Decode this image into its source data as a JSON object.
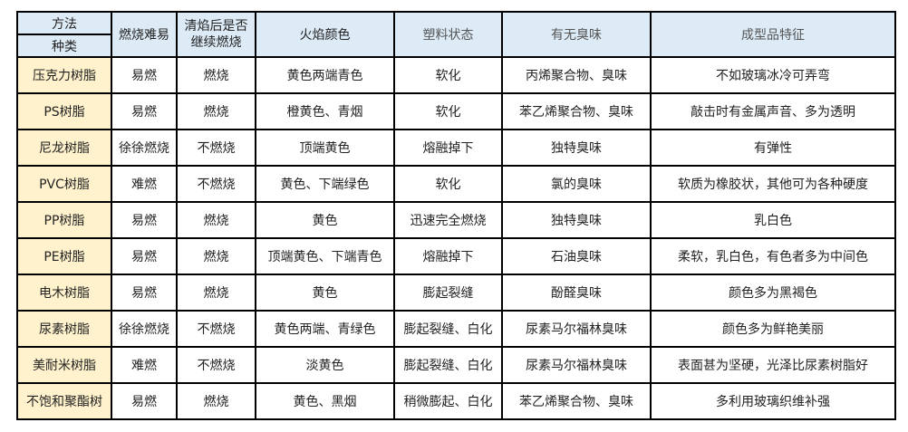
{
  "header": {
    "method": "方法",
    "kind": "种类",
    "columns": [
      "燃烧难易",
      "清焰后是否继续燃烧",
      "火焰颜色",
      "塑料状态",
      "有无臭味",
      "成型品特征"
    ]
  },
  "rows": [
    [
      "压克力树脂",
      "易燃",
      "燃烧",
      "黄色两端青色",
      "软化",
      "丙烯聚合物、臭味",
      "不如玻璃冰冷可弄弯"
    ],
    [
      "PS树脂",
      "易燃",
      "燃烧",
      "橙黄色、青烟",
      "软化",
      "苯乙烯聚合物、臭味",
      "敲击时有金属声音、多为透明"
    ],
    [
      "尼龙树脂",
      "徐徐燃烧",
      "不燃烧",
      "顶端黄色",
      "熔融掉下",
      "独特臭味",
      "有弹性"
    ],
    [
      "PVC树脂",
      "难燃",
      "不燃烧",
      "黄色、下端绿色",
      "软化",
      "氯的臭味",
      "软质为橡胶状，其他可为各种硬度"
    ],
    [
      "PP树脂",
      "易燃",
      "燃烧",
      "黄色",
      "迅速完全燃烧",
      "独特臭味",
      "乳白色"
    ],
    [
      "PE树脂",
      "易燃",
      "燃烧",
      "顶端黄色、下端青色",
      "熔融掉下",
      "石油臭味",
      "柔软，乳白色，有色者多为中间色"
    ],
    [
      "电木树脂",
      "易燃",
      "燃烧",
      "黄色",
      "膨起裂缝",
      "酚醛臭味",
      "颜色多为黑褐色"
    ],
    [
      "尿素树脂",
      "徐徐燃烧",
      "不燃烧",
      "黄色两端、青绿色",
      "膨起裂缝、白化",
      "尿素马尔福林臭味",
      "颜色多为鲜艳美丽"
    ],
    [
      "美耐米树脂",
      "难燃",
      "不燃烧",
      "淡黄色",
      "膨起裂缝、白化",
      "尿素马尔福林臭味",
      "表面甚为坚硬，光泽比尿素树脂好"
    ],
    [
      "不饱和聚酯树",
      "易燃",
      "燃烧",
      "黄色、黑烟",
      "稍微膨起、白化",
      "苯乙烯聚合物、臭味",
      "多利用玻璃织维补强"
    ]
  ],
  "colors": {
    "header_bg": "#ddebf7",
    "kind_bg": "#fff2cc",
    "border": "#000000"
  }
}
